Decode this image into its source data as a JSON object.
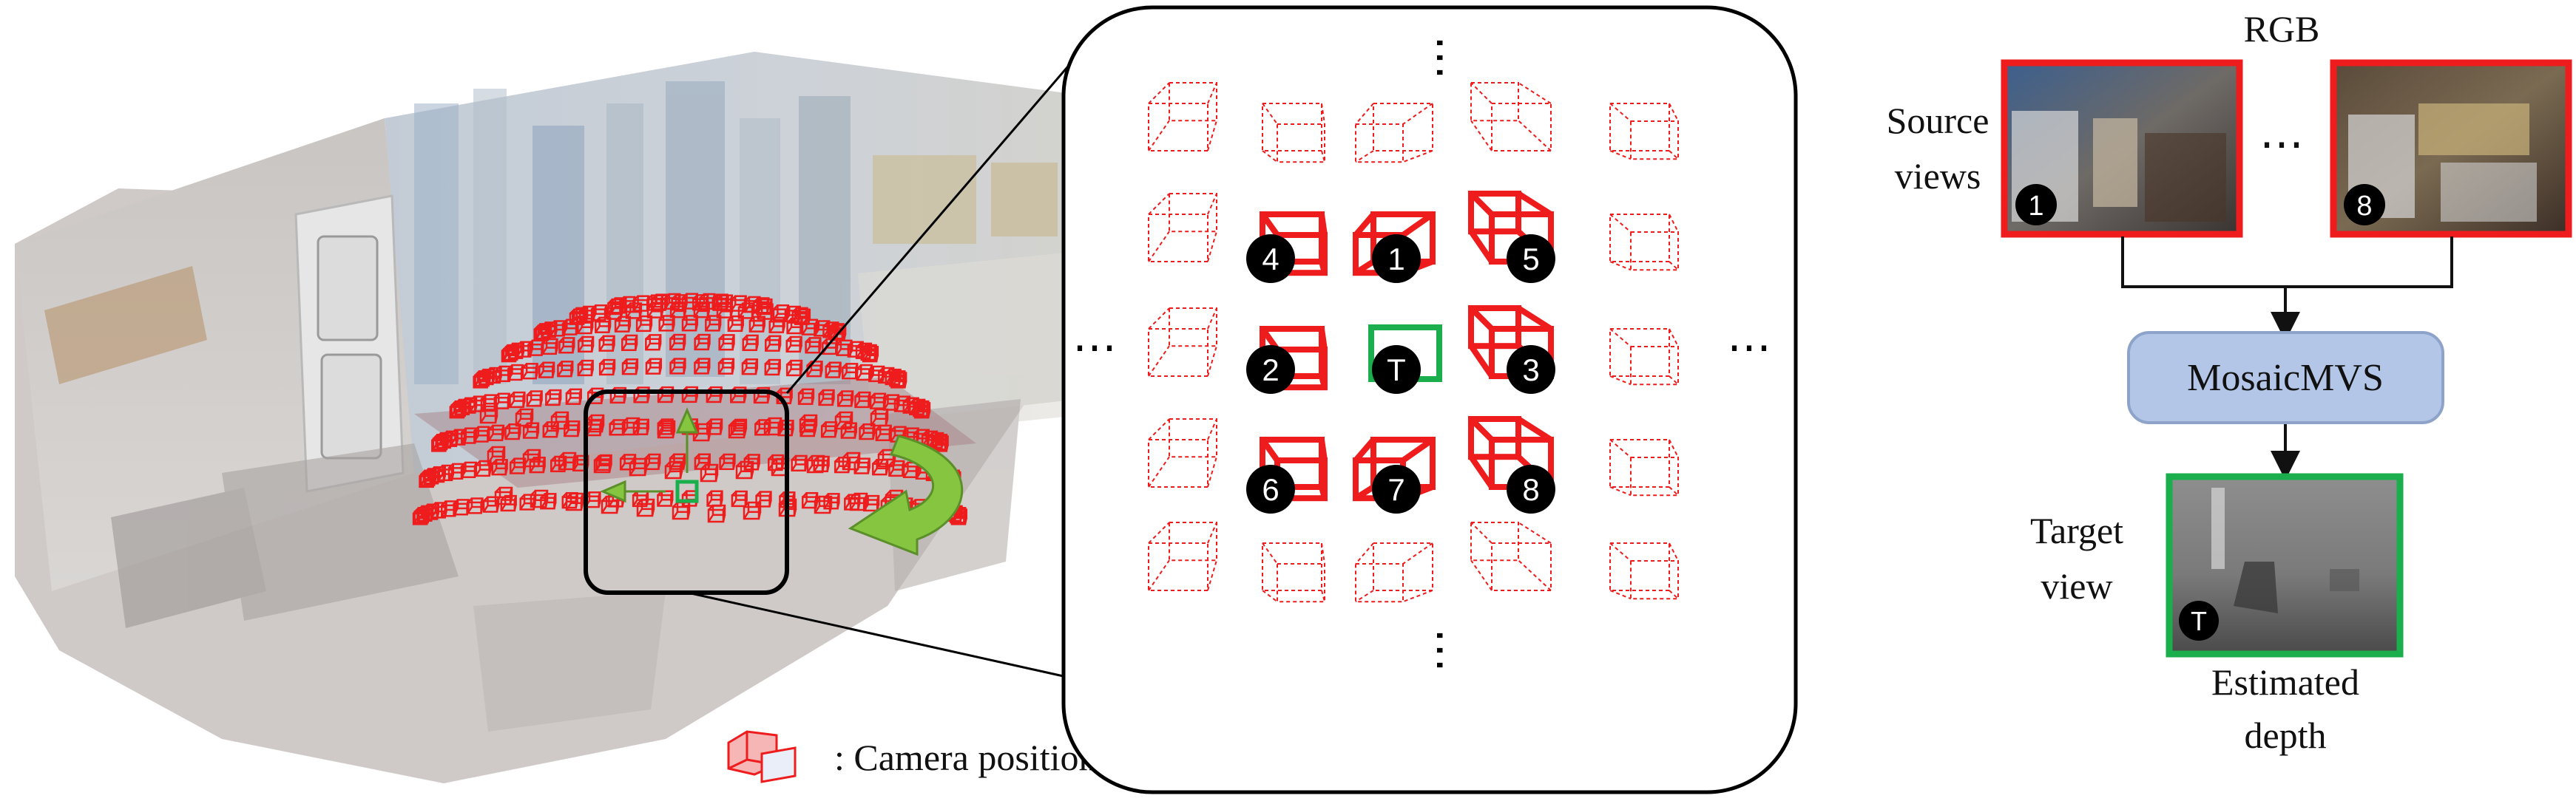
{
  "legend": {
    "label": ": Camera position"
  },
  "zoom_panel": {
    "badges": {
      "cam1": "1",
      "cam2": "2",
      "cam3": "3",
      "cam4": "4",
      "cam5": "5",
      "cam6": "6",
      "cam7": "7",
      "cam8": "8",
      "target": "T"
    },
    "ellipsis": "⋯"
  },
  "pipeline": {
    "rgb_label": "RGB",
    "source_views_line1": "Source",
    "source_views_line2": "views",
    "source_first_badge": "1",
    "source_last_badge": "8",
    "ellipsis": "⋯",
    "model_label": "MosaicMVS",
    "target_view_line1": "Target",
    "target_view_line2": "view",
    "target_badge": "T",
    "estimated_depth_line1": "Estimated",
    "estimated_depth_line2": "depth"
  },
  "colors": {
    "camera_red": "#ee1c1c",
    "target_green": "#1aae4c",
    "arrow_green": "#86c540",
    "model_box_fill": "#b4c6e7",
    "model_box_stroke": "#8ea3c9"
  }
}
